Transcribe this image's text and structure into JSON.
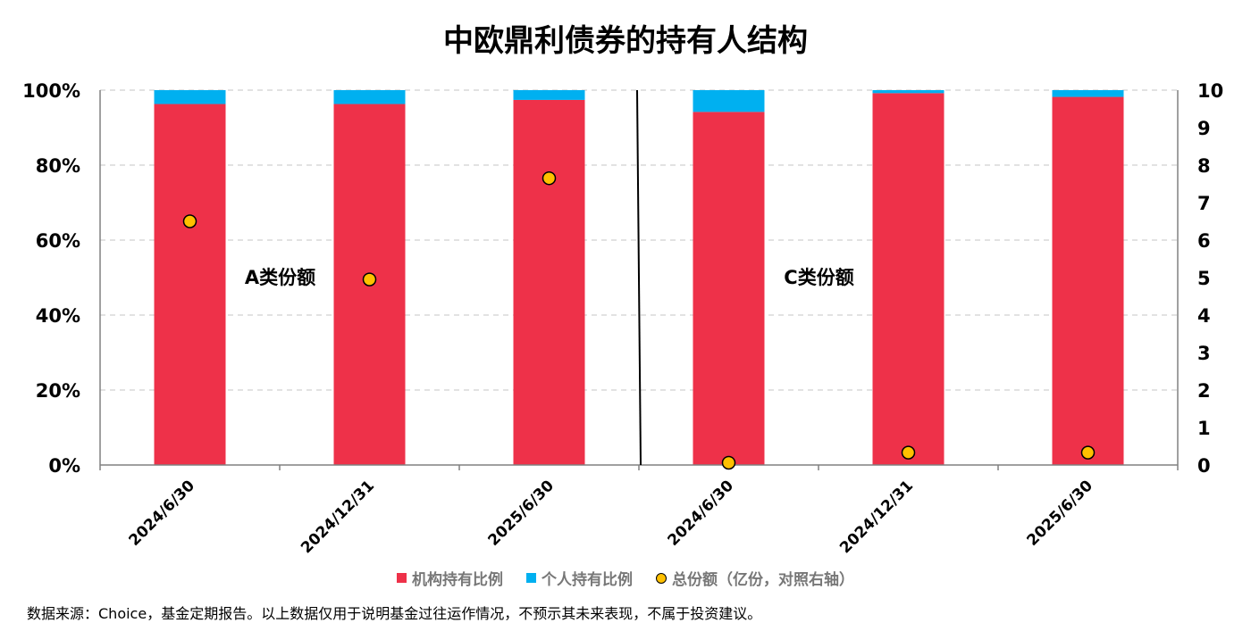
{
  "title": "中欧鼎利债券的持有人结构",
  "footnote": "数据来源：Choice，基金定期报告。以上数据仅用于说明基金过往运作情况，不预示其未来表现，不属于投资建议。",
  "legend": {
    "institution": "机构持有比例",
    "individual": "个人持有比例",
    "total": "总份额（亿份，对照右轴）"
  },
  "colors": {
    "institution": "#EE3149",
    "individual": "#00B0F0",
    "total": "#FFC000",
    "grid": "#d9d9d9",
    "axis": "#808080"
  },
  "chart_data": {
    "type": "bar",
    "stacked": true,
    "categories": [
      "2024/6/30",
      "2024/12/31",
      "2025/6/30",
      "2024/6/30",
      "2024/12/31",
      "2025/6/30"
    ],
    "groups": [
      {
        "label": "A类份额",
        "category_indices": [
          0,
          1,
          2
        ]
      },
      {
        "label": "C类份额",
        "category_indices": [
          3,
          4,
          5
        ]
      }
    ],
    "series": [
      {
        "name": "机构持有比例",
        "axis": "left",
        "kind": "bar",
        "values": [
          96.3,
          96.3,
          97.4,
          94.2,
          99.2,
          98.2
        ]
      },
      {
        "name": "个人持有比例",
        "axis": "left",
        "kind": "bar",
        "values": [
          3.7,
          3.7,
          2.6,
          5.8,
          0.8,
          1.8
        ]
      },
      {
        "name": "总份额（亿份，对照右轴）",
        "axis": "right",
        "kind": "scatter",
        "values": [
          6.5,
          4.95,
          7.65,
          0.06,
          0.33,
          0.33
        ]
      }
    ],
    "left_axis": {
      "ylim": [
        0,
        100
      ],
      "ticks": [
        "0%",
        "20%",
        "40%",
        "60%",
        "80%",
        "100%"
      ],
      "tick_values": [
        0,
        20,
        40,
        60,
        80,
        100
      ]
    },
    "right_axis": {
      "ylim": [
        0,
        10
      ],
      "ticks": [
        "0",
        "1",
        "2",
        "3",
        "4",
        "5",
        "6",
        "7",
        "8",
        "9",
        "10"
      ],
      "tick_values": [
        0,
        1,
        2,
        3,
        4,
        5,
        6,
        7,
        8,
        9,
        10
      ]
    },
    "grid": true,
    "legend_position": "bottom"
  }
}
